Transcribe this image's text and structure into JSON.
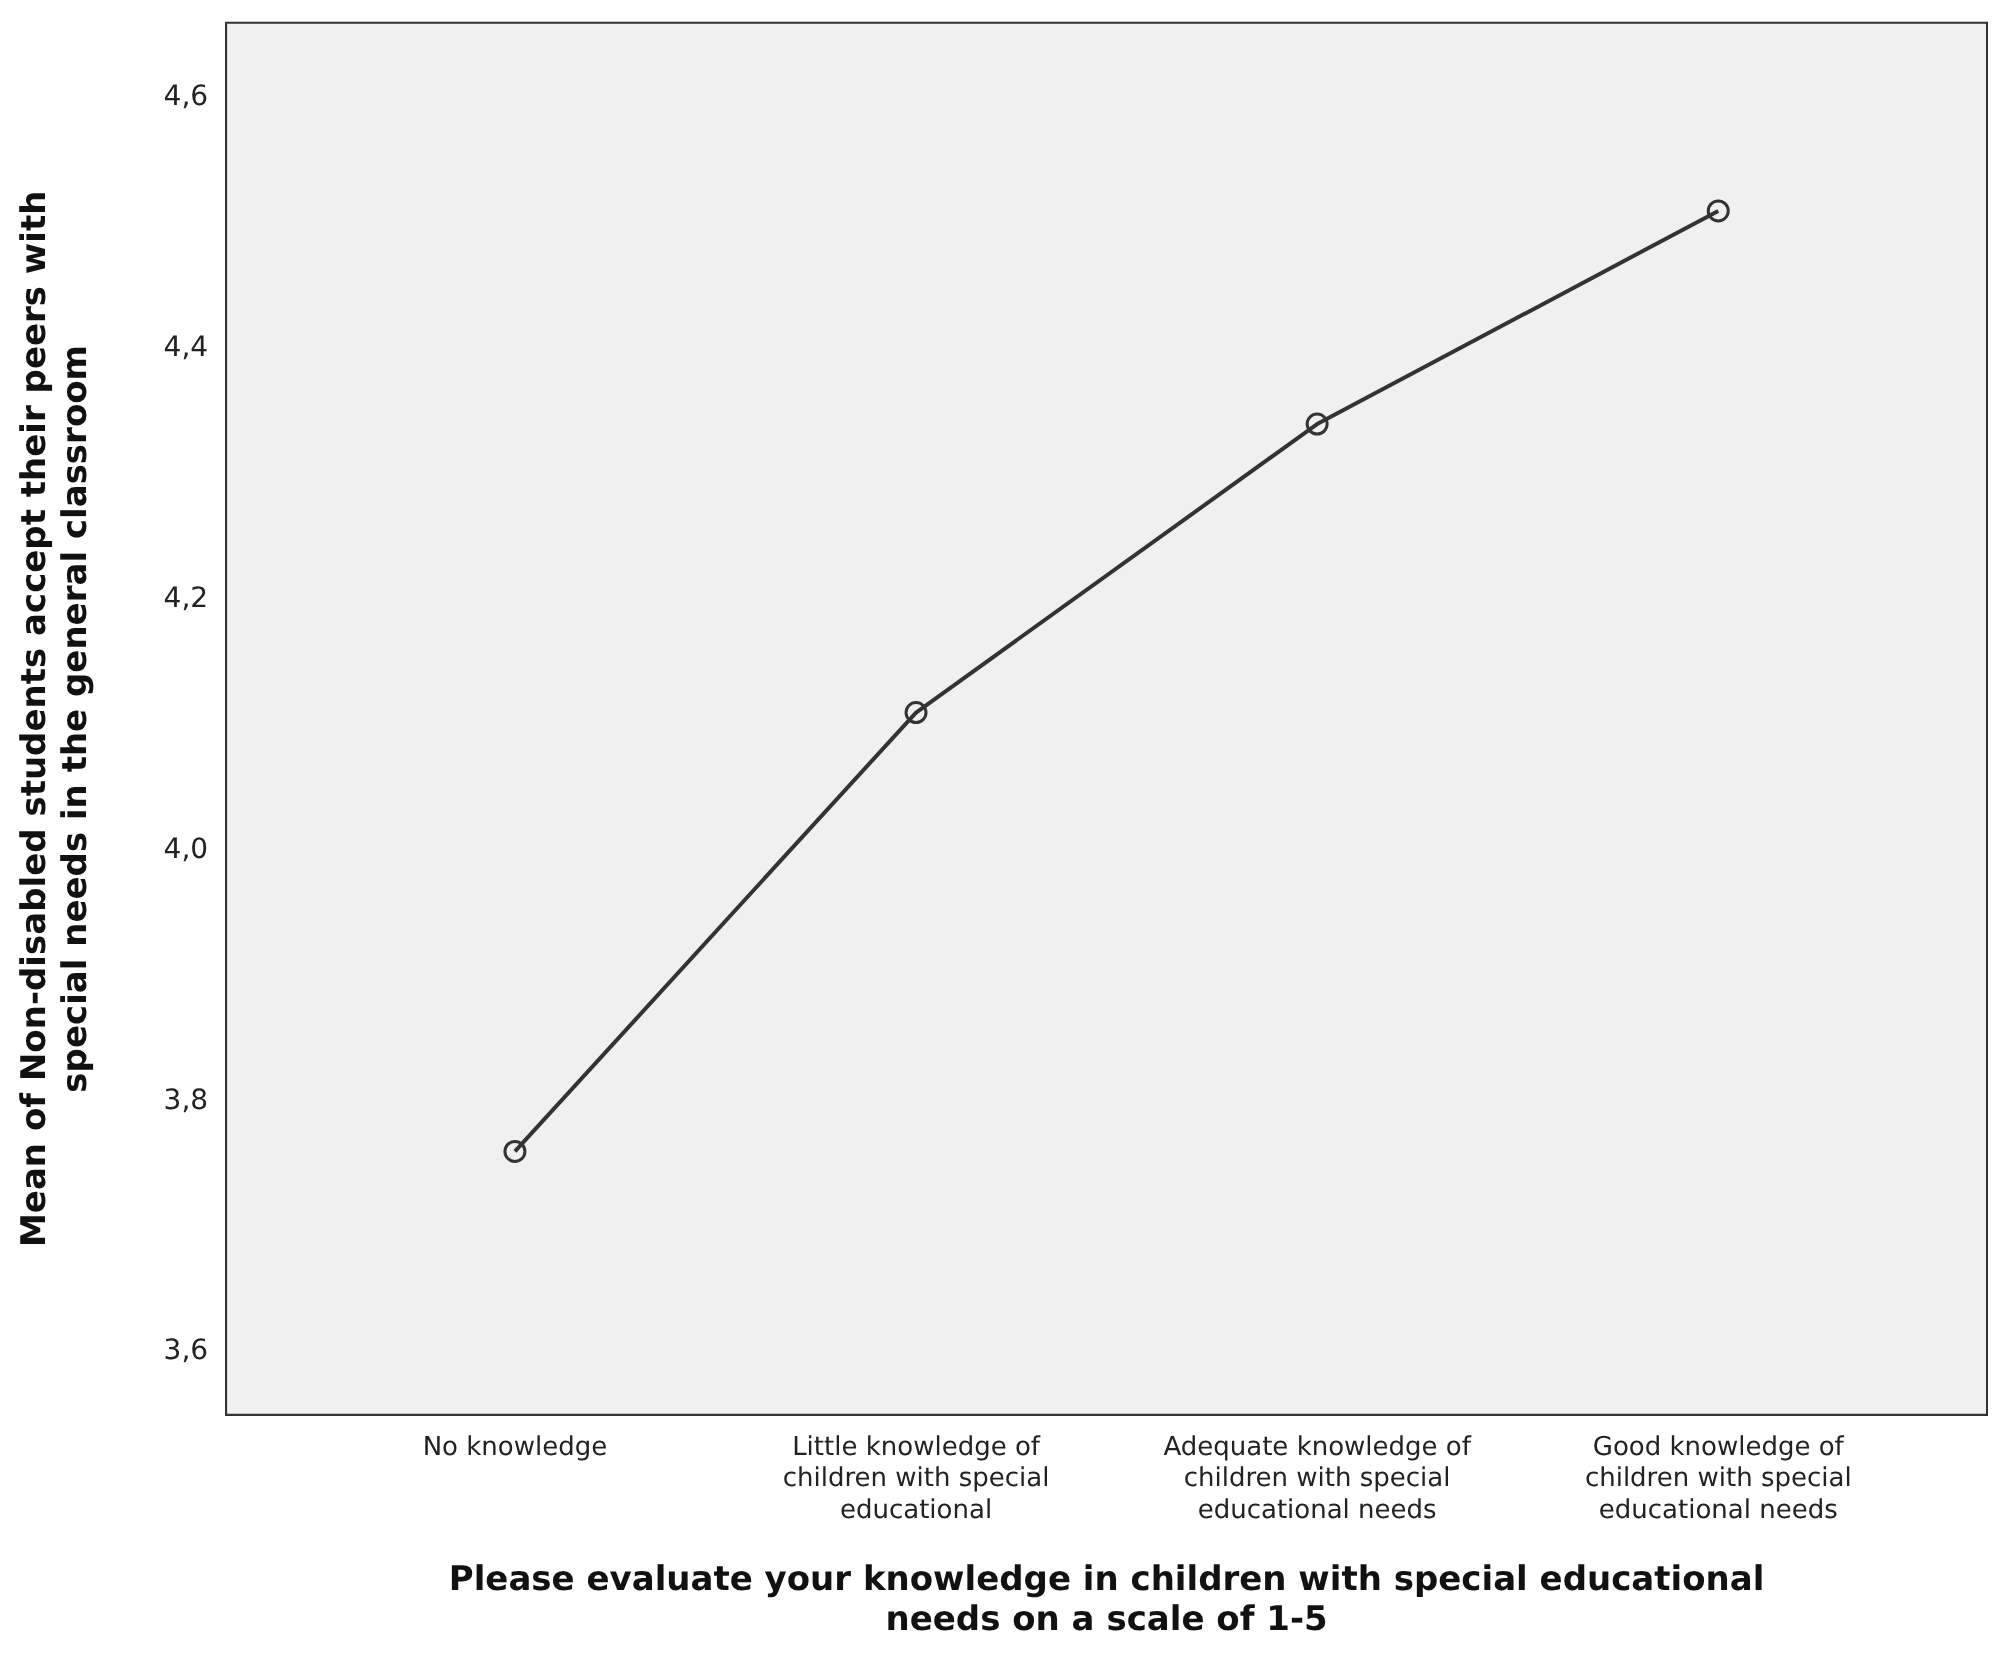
{
  "chart_data": {
    "type": "line",
    "xlabel": "Please evaluate your knowledge in children with special educational needs on a scale of 1-5",
    "ylabel": "Mean of Non-disabled students accept their peers with special needs in the general classroom",
    "categories": [
      "No knowledge",
      "Little knowledge of children with special educational",
      "Adequate knowledge of children with special educational needs",
      "Good knowledge of children with special educational needs"
    ],
    "series": [
      {
        "color": "#333333",
        "values": [
          3.76,
          4.11,
          4.34,
          4.51
        ]
      }
    ],
    "ylim": [
      3.55,
      4.66
    ],
    "yticks": [
      {
        "value": 3.6,
        "label": "3,6"
      },
      {
        "value": 3.8,
        "label": "3,8"
      },
      {
        "value": 4.0,
        "label": "4,0"
      },
      {
        "value": 4.2,
        "label": "4,2"
      },
      {
        "value": 4.4,
        "label": "4,4"
      },
      {
        "value": 4.6,
        "label": "4,6"
      }
    ],
    "grid": false,
    "legend": false,
    "marker": "circle",
    "line_style": "solid"
  }
}
